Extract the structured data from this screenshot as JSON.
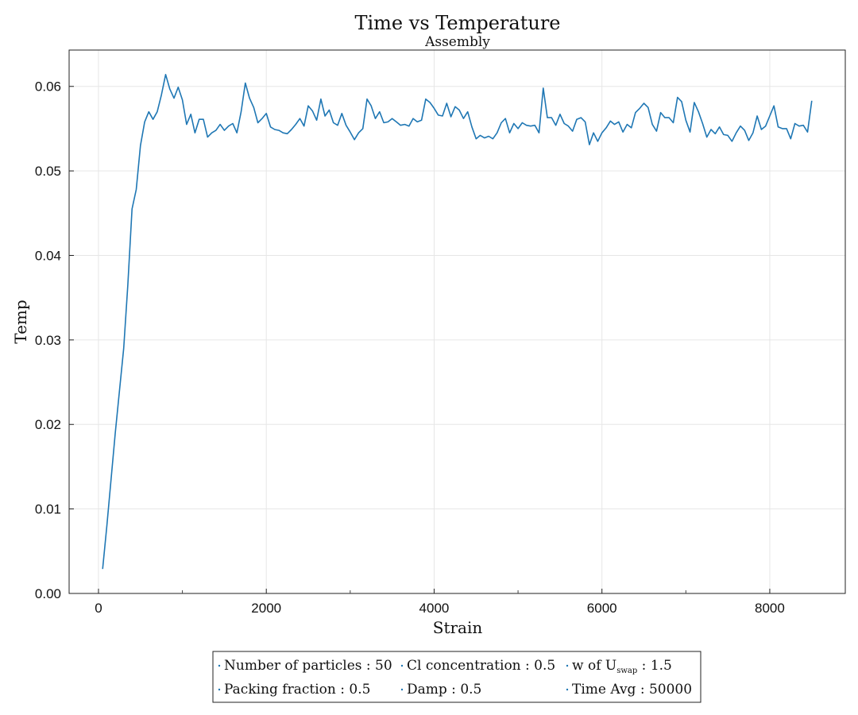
{
  "chart_data": {
    "type": "line",
    "title": "Time vs Temperature",
    "subtitle": "Assembly",
    "xlabel": "Strain",
    "ylabel": "Temp",
    "xlim": [
      -350,
      8900
    ],
    "ylim": [
      0.0,
      0.0643
    ],
    "xticks": [
      0,
      2000,
      4000,
      6000,
      8000
    ],
    "xtick_labels": [
      "0",
      "2000",
      "4000",
      "6000",
      "8000"
    ],
    "yticks": [
      0.0,
      0.01,
      0.02,
      0.03,
      0.04,
      0.05,
      0.06
    ],
    "ytick_labels": [
      "0.00",
      "0.01",
      "0.02",
      "0.03",
      "0.04",
      "0.05",
      "0.06"
    ],
    "grid": true,
    "legend_position": "bottom-center",
    "line_color": "#1f77b4",
    "series": [
      {
        "x": [
          50,
          100,
          150,
          200,
          250,
          300,
          350,
          400,
          450,
          500,
          550,
          600,
          650,
          700,
          750,
          800,
          850,
          900,
          950,
          1000,
          1050,
          1100,
          1150,
          1200,
          1250,
          1300,
          1350,
          1400,
          1450,
          1500,
          1550,
          1600,
          1650,
          1700,
          1750,
          1800,
          1850,
          1900,
          1950,
          2000,
          2050,
          2100,
          2150,
          2200,
          2250,
          2300,
          2350,
          2400,
          2450,
          2500,
          2550,
          2600,
          2650,
          2700,
          2750,
          2800,
          2850,
          2900,
          2950,
          3000,
          3050,
          3100,
          3150,
          3200,
          3250,
          3300,
          3350,
          3400,
          3450,
          3500,
          3550,
          3600,
          3650,
          3700,
          3750,
          3800,
          3850,
          3900,
          3950,
          4000,
          4050,
          4100,
          4150,
          4200,
          4250,
          4300,
          4350,
          4400,
          4450,
          4500,
          4550,
          4600,
          4650,
          4700,
          4750,
          4800,
          4850,
          4900,
          4950,
          5000,
          5050,
          5100,
          5150,
          5200,
          5250,
          5300,
          5350,
          5400,
          5450,
          5500,
          5550,
          5600,
          5650,
          5700,
          5750,
          5800,
          5850,
          5900,
          5950,
          6000,
          6050,
          6100,
          6150,
          6200,
          6250,
          6300,
          6350,
          6400,
          6450,
          6500,
          6550,
          6600,
          6650,
          6700,
          6750,
          6800,
          6850,
          6900,
          6950,
          7000,
          7050,
          7100,
          7150,
          7200,
          7250,
          7300,
          7350,
          7400,
          7450,
          7500,
          7550,
          7600,
          7650,
          7700,
          7750,
          7800,
          7850,
          7900,
          7950,
          8000,
          8050,
          8100,
          8150,
          8200,
          8250,
          8300,
          8350,
          8400,
          8450,
          8500
        ],
        "y": [
          0.0029,
          0.008,
          0.0135,
          0.019,
          0.024,
          0.029,
          0.0365,
          0.0455,
          0.0478,
          0.053,
          0.0558,
          0.057,
          0.0561,
          0.057,
          0.059,
          0.0614,
          0.0597,
          0.0586,
          0.0599,
          0.0584,
          0.0555,
          0.0567,
          0.0545,
          0.0561,
          0.0561,
          0.054,
          0.0545,
          0.0548,
          0.0555,
          0.0548,
          0.0553,
          0.0556,
          0.0545,
          0.057,
          0.0604,
          0.0586,
          0.0575,
          0.0557,
          0.0562,
          0.0568,
          0.0552,
          0.0549,
          0.0548,
          0.0545,
          0.0544,
          0.0549,
          0.0555,
          0.0562,
          0.0553,
          0.0577,
          0.0571,
          0.056,
          0.0585,
          0.0565,
          0.0572,
          0.0557,
          0.0554,
          0.0568,
          0.0554,
          0.0546,
          0.0537,
          0.0545,
          0.055,
          0.0585,
          0.0577,
          0.0562,
          0.057,
          0.0557,
          0.0558,
          0.0562,
          0.0558,
          0.0554,
          0.0555,
          0.0553,
          0.0562,
          0.0558,
          0.056,
          0.0585,
          0.0581,
          0.0574,
          0.0566,
          0.0565,
          0.058,
          0.0564,
          0.0576,
          0.0572,
          0.0562,
          0.057,
          0.0552,
          0.0538,
          0.0542,
          0.0539,
          0.0541,
          0.0538,
          0.0545,
          0.0557,
          0.0562,
          0.0545,
          0.0556,
          0.055,
          0.0557,
          0.0554,
          0.0553,
          0.0554,
          0.0545,
          0.0598,
          0.0563,
          0.0563,
          0.0554,
          0.0567,
          0.0556,
          0.0553,
          0.0547,
          0.0561,
          0.0563,
          0.0558,
          0.0531,
          0.0545,
          0.0535,
          0.0545,
          0.0551,
          0.0559,
          0.0555,
          0.0558,
          0.0546,
          0.0555,
          0.0551,
          0.0569,
          0.0574,
          0.058,
          0.0575,
          0.0555,
          0.0547,
          0.0569,
          0.0563,
          0.0563,
          0.0557,
          0.0587,
          0.0582,
          0.056,
          0.0546,
          0.0581,
          0.057,
          0.0556,
          0.054,
          0.0549,
          0.0544,
          0.0552,
          0.0543,
          0.0542,
          0.0535,
          0.0545,
          0.0553,
          0.0548,
          0.0536,
          0.0545,
          0.0565,
          0.0549,
          0.0553,
          0.0565,
          0.0577,
          0.0552,
          0.055,
          0.055,
          0.0538,
          0.0556,
          0.0553,
          0.0554,
          0.0546,
          0.0583
        ]
      }
    ]
  },
  "legend": {
    "row1": [
      {
        "label": "Number of particles",
        "value": "50"
      },
      {
        "label": "Cl concentration",
        "value": "0.5"
      },
      {
        "label": "w of U",
        "sub": "swap",
        "value": "1.5"
      }
    ],
    "row2": [
      {
        "label": "Packing fraction",
        "value": "0.5"
      },
      {
        "label": "Damp",
        "value": "0.5"
      },
      {
        "label": "Time Avg",
        "value": "50000"
      }
    ]
  }
}
